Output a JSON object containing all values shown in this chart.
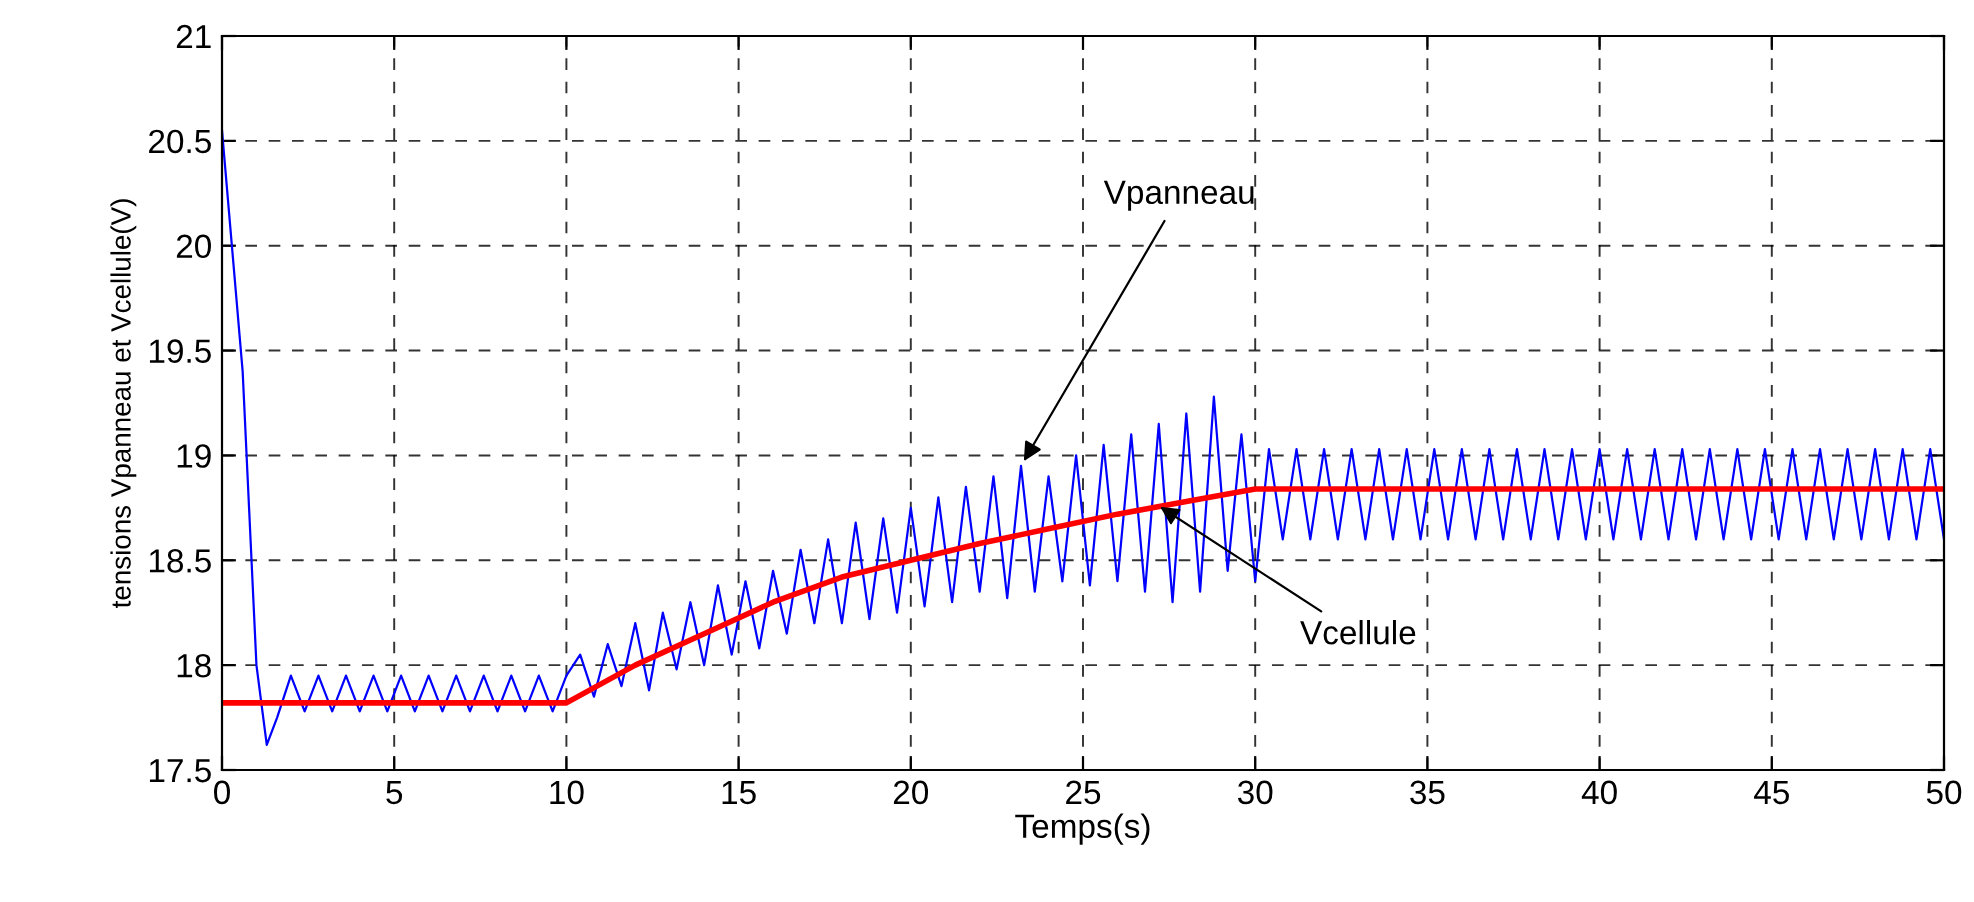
{
  "chart_data": {
    "type": "line",
    "xlabel": "Temps(s)",
    "ylabel": "tensions Vpanneau et Vcellule(V)",
    "xlim": [
      0,
      50
    ],
    "ylim": [
      17.5,
      21
    ],
    "xticks": [
      0,
      5,
      10,
      15,
      20,
      25,
      30,
      35,
      40,
      45,
      50
    ],
    "yticks": [
      17.5,
      18,
      18.5,
      19,
      19.5,
      20,
      20.5,
      21
    ],
    "grid": true,
    "line_style": "solid",
    "series": [
      {
        "color": "#0000ff",
        "x": [
          0,
          0.6,
          1.0,
          1.3,
          1.6,
          2.0,
          2.4,
          2.8,
          3.2,
          3.6,
          4.0,
          4.4,
          4.8,
          5.2,
          5.6,
          6.0,
          6.4,
          6.8,
          7.2,
          7.6,
          8.0,
          8.4,
          8.8,
          9.2,
          9.6,
          10.0,
          10.4,
          10.8,
          11.2,
          11.6,
          12.0,
          12.4,
          12.8,
          13.2,
          13.6,
          14.0,
          14.4,
          14.8,
          15.2,
          15.6,
          16.0,
          16.4,
          16.8,
          17.2,
          17.6,
          18.0,
          18.4,
          18.8,
          19.2,
          19.6,
          20.0,
          20.4,
          20.8,
          21.2,
          21.6,
          22.0,
          22.4,
          22.8,
          23.2,
          23.6,
          24.0,
          24.4,
          24.8,
          25.2,
          25.6,
          26.0,
          26.4,
          26.8,
          27.2,
          27.6,
          28.0,
          28.4,
          28.8,
          29.2,
          29.6,
          30.0,
          30.4,
          30.8,
          31.2,
          31.6,
          32.0,
          32.4,
          32.8,
          33.2,
          33.6,
          34.0,
          34.4,
          34.8,
          35.2,
          35.6,
          36.0,
          36.4,
          36.8,
          37.2,
          37.6,
          38.0,
          38.4,
          38.8,
          39.2,
          39.6,
          40.0,
          40.4,
          40.8,
          41.2,
          41.6,
          42.0,
          42.4,
          42.8,
          43.2,
          43.6,
          44.0,
          44.4,
          44.8,
          45.2,
          45.6,
          46.0,
          46.4,
          46.8,
          47.2,
          47.6,
          48.0,
          48.4,
          48.8,
          49.2,
          49.6,
          50.0
        ],
        "values": [
          20.55,
          19.4,
          18.0,
          17.62,
          17.75,
          17.95,
          17.78,
          17.95,
          17.78,
          17.95,
          17.78,
          17.95,
          17.78,
          17.95,
          17.78,
          17.95,
          17.78,
          17.95,
          17.78,
          17.95,
          17.78,
          17.95,
          17.78,
          17.95,
          17.78,
          17.95,
          18.05,
          17.85,
          18.1,
          17.9,
          18.2,
          17.88,
          18.25,
          17.98,
          18.3,
          18.0,
          18.38,
          18.05,
          18.4,
          18.08,
          18.45,
          18.15,
          18.55,
          18.2,
          18.6,
          18.2,
          18.68,
          18.22,
          18.7,
          18.25,
          18.75,
          18.28,
          18.8,
          18.3,
          18.85,
          18.35,
          18.9,
          18.32,
          18.95,
          18.35,
          18.9,
          18.4,
          19.0,
          18.38,
          19.05,
          18.4,
          19.1,
          18.35,
          19.15,
          18.3,
          19.2,
          18.35,
          19.28,
          18.45,
          19.1,
          18.4,
          19.03,
          18.6,
          19.03,
          18.6,
          19.03,
          18.6,
          19.03,
          18.6,
          19.03,
          18.6,
          19.03,
          18.6,
          19.03,
          18.6,
          19.03,
          18.6,
          19.03,
          18.6,
          19.03,
          18.6,
          19.03,
          18.6,
          19.03,
          18.6,
          19.03,
          18.6,
          19.03,
          18.6,
          19.03,
          18.6,
          19.03,
          18.6,
          19.03,
          18.6,
          19.03,
          18.6,
          19.03,
          18.6,
          19.03,
          18.6,
          19.03,
          18.6,
          19.03,
          18.6,
          19.03,
          18.6,
          19.03,
          18.6,
          19.03,
          18.6
        ]
      },
      {
        "color": "#ff0000",
        "x": [
          0,
          10,
          12,
          14,
          16,
          18,
          20,
          22,
          24,
          26,
          28,
          30,
          50
        ],
        "values": [
          17.82,
          17.82,
          18.0,
          18.15,
          18.3,
          18.42,
          18.5,
          18.58,
          18.65,
          18.72,
          18.78,
          18.84,
          18.84
        ]
      }
    ],
    "annotations": [
      {
        "text": "Vpanneau",
        "x": 23.2,
        "y": 18.95
      },
      {
        "text": "Vcellule",
        "x": 27.1,
        "y": 18.77
      }
    ]
  }
}
